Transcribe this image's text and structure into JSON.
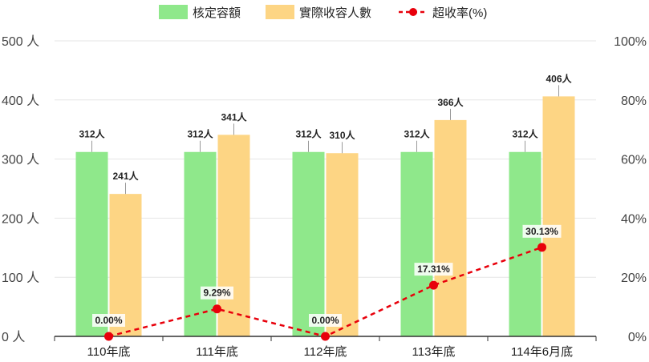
{
  "chart_data": {
    "type": "bar",
    "categories": [
      "110年底",
      "111年底",
      "112年底",
      "113年底",
      "114年6月底"
    ],
    "series": [
      {
        "name": "核定容額",
        "type": "bar",
        "values": [
          312,
          312,
          312,
          312,
          312
        ],
        "labels": [
          "312人",
          "312人",
          "312人",
          "312人",
          "312人"
        ],
        "color": "#8fe88b"
      },
      {
        "name": "實際收容人數",
        "type": "bar",
        "values": [
          241,
          341,
          310,
          366,
          406
        ],
        "labels": [
          "241人",
          "341人",
          "310人",
          "366人",
          "406人"
        ],
        "color": "#fdd584"
      },
      {
        "name": "超收率(%)",
        "type": "line",
        "axis": "right",
        "values": [
          0.0,
          9.29,
          0.0,
          17.31,
          30.13
        ],
        "labels": [
          "0.00%",
          "9.29%",
          "0.00%",
          "17.31%",
          "30.13%"
        ],
        "color": "#e8000b",
        "style": "dashed"
      }
    ],
    "y_left": {
      "ylim": [
        0,
        500
      ],
      "ticks": [
        0,
        100,
        200,
        300,
        400,
        500
      ],
      "tick_labels": [
        "0 人",
        "100 人",
        "200 人",
        "300 人",
        "400 人",
        "500 人"
      ]
    },
    "y_right": {
      "ylim": [
        0,
        100
      ],
      "ticks": [
        0,
        20,
        40,
        60,
        80,
        100
      ],
      "tick_labels": [
        "0%",
        "20%",
        "40%",
        "60%",
        "80%",
        "100%"
      ]
    },
    "grid": true,
    "legend": "top-center"
  }
}
